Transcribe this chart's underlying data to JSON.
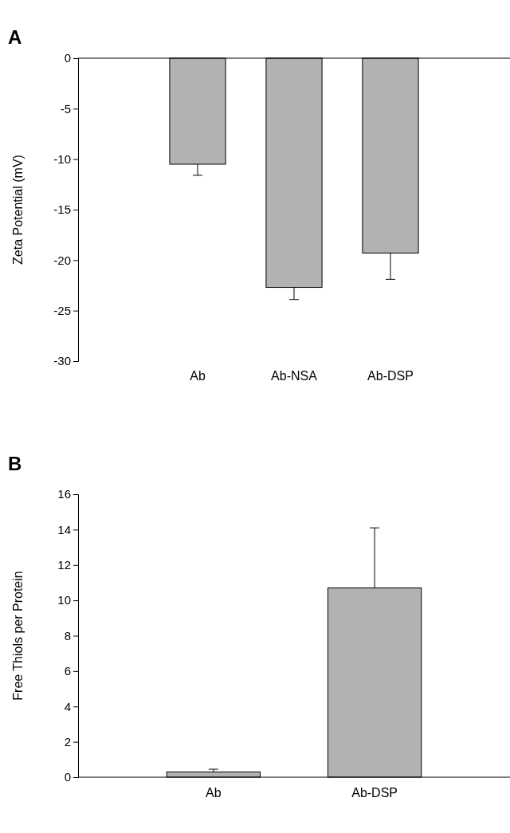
{
  "chart_data": [
    {
      "type": "bar",
      "title": "A",
      "ylabel": "Zeta Potential (mV)",
      "categories": [
        "Ab",
        "Ab-NSA",
        "Ab-DSP"
      ],
      "values": [
        -10.5,
        -22.7,
        -19.3
      ],
      "errors": [
        [
          -11.6,
          -10.5
        ],
        [
          -23.9,
          -22.7
        ],
        [
          -21.9,
          -19.3
        ]
      ],
      "color": "#b2b2b2",
      "ylim": [
        -30,
        0
      ],
      "yticks": [
        -30,
        -25,
        -20,
        -15,
        -10,
        -5,
        0
      ]
    },
    {
      "type": "bar",
      "title": "B",
      "ylabel": "Free Thiols per Protein",
      "categories": [
        "Ab",
        "Ab-DSP"
      ],
      "values": [
        0.3,
        10.7
      ],
      "errors": [
        [
          0.3,
          0.45
        ],
        [
          10.7,
          14.1
        ]
      ],
      "color": "#b2b2b2",
      "ylim": [
        0,
        16
      ],
      "yticks": [
        0,
        2,
        4,
        6,
        8,
        10,
        12,
        14,
        16
      ]
    }
  ]
}
